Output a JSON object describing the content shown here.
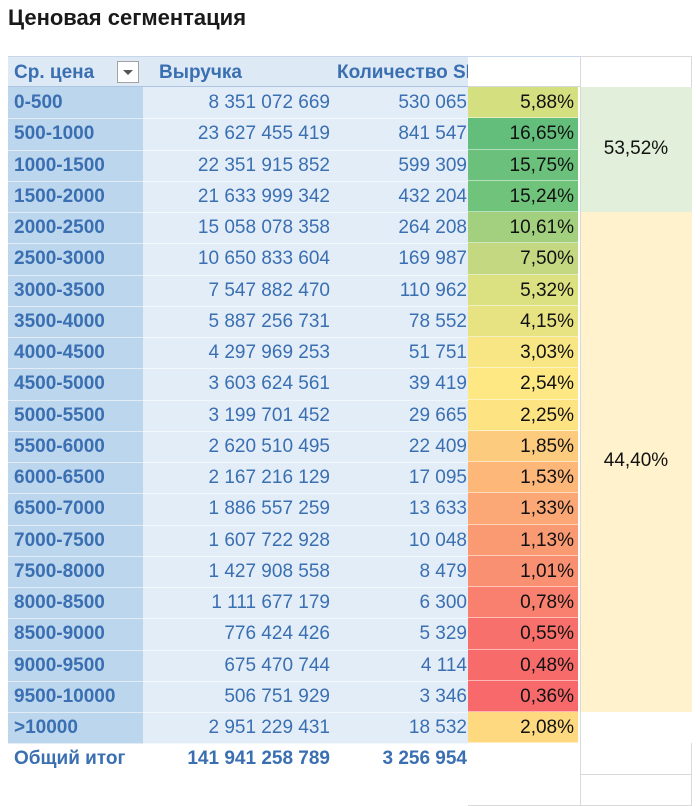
{
  "title": "Ценовая сегментация",
  "header": {
    "range": "Ср. цена",
    "revenue": "Выручка",
    "sku": "Количество SKU",
    "filter_icon": "chevron-down-icon"
  },
  "rows": [
    {
      "range": "0-500",
      "revenue": "8 351 072 669",
      "sku": "530 065",
      "share": "5,88%",
      "color": "#d4df7f"
    },
    {
      "range": "500-1000",
      "revenue": "23 627 455 419",
      "sku": "841 547",
      "share": "16,65%",
      "color": "#63be7b"
    },
    {
      "range": "1000-1500",
      "revenue": "22 351 915 852",
      "sku": "599 309",
      "share": "15,75%",
      "color": "#6bc17b"
    },
    {
      "range": "1500-2000",
      "revenue": "21 633 999 342",
      "sku": "432 204",
      "share": "15,24%",
      "color": "#6fc37b"
    },
    {
      "range": "2000-2500",
      "revenue": "15 058 078 358",
      "sku": "264 208",
      "share": "10,61%",
      "color": "#a3d07e"
    },
    {
      "range": "2500-3000",
      "revenue": "10 650 833 604",
      "sku": "169 987",
      "share": "7,50%",
      "color": "#c3d880"
    },
    {
      "range": "3000-3500",
      "revenue": "7 547 882 470",
      "sku": "110 962",
      "share": "5,32%",
      "color": "#dbe080"
    },
    {
      "range": "3500-4000",
      "revenue": "5 887 256 731",
      "sku": "78 552",
      "share": "4,15%",
      "color": "#e8e382"
    },
    {
      "range": "4000-4500",
      "revenue": "4 297 969 253",
      "sku": "51 751",
      "share": "3,03%",
      "color": "#f7e683"
    },
    {
      "range": "4500-5000",
      "revenue": "3 603 624 561",
      "sku": "39 419",
      "share": "2,54%",
      "color": "#fde883"
    },
    {
      "range": "5000-5500",
      "revenue": "3 199 701 452",
      "sku": "29 665",
      "share": "2,25%",
      "color": "#fee382"
    },
    {
      "range": "5500-6000",
      "revenue": "2 620 510 495",
      "sku": "22 409",
      "share": "1,85%",
      "color": "#fdcb7d"
    },
    {
      "range": "6000-6500",
      "revenue": "2 167 216 129",
      "sku": "17 095",
      "share": "1,53%",
      "color": "#fcb779"
    },
    {
      "range": "6500-7000",
      "revenue": "1 886 557 259",
      "sku": "13 633",
      "share": "1,33%",
      "color": "#fba876"
    },
    {
      "range": "7000-7500",
      "revenue": "1 607 722 928",
      "sku": "10 048",
      "share": "1,13%",
      "color": "#fa9a73"
    },
    {
      "range": "7500-8000",
      "revenue": "1 427 908 558",
      "sku": "8 479",
      "share": "1,01%",
      "color": "#fa9072"
    },
    {
      "range": "8000-8500",
      "revenue": "1 111 677 179",
      "sku": "6 300",
      "share": "0,78%",
      "color": "#f97f6e"
    },
    {
      "range": "8500-9000",
      "revenue": "776 424 426",
      "sku": "5 329",
      "share": "0,55%",
      "color": "#f8706c"
    },
    {
      "range": "9000-9500",
      "revenue": "675 470 744",
      "sku": "4 114",
      "share": "0,48%",
      "color": "#f86b6b"
    },
    {
      "range": "9500-10000",
      "revenue": "506 751 929",
      "sku": "3 346",
      "share": "0,36%",
      "color": "#f8696b"
    },
    {
      "range": ">10000",
      "revenue": "2 951 229 431",
      "sku": "18 532",
      "share": "2,08%",
      "color": "#fed980"
    }
  ],
  "total": {
    "range": "Общий итог",
    "revenue": "141 941 258 789",
    "sku": "3 256 954"
  },
  "groups": [
    {
      "label": "53,52%",
      "from_row": 0,
      "to_row": 3,
      "color": "#e2efda"
    },
    {
      "label": "44,40%",
      "from_row": 4,
      "to_row": 19,
      "color": "#fff2cc"
    }
  ]
}
